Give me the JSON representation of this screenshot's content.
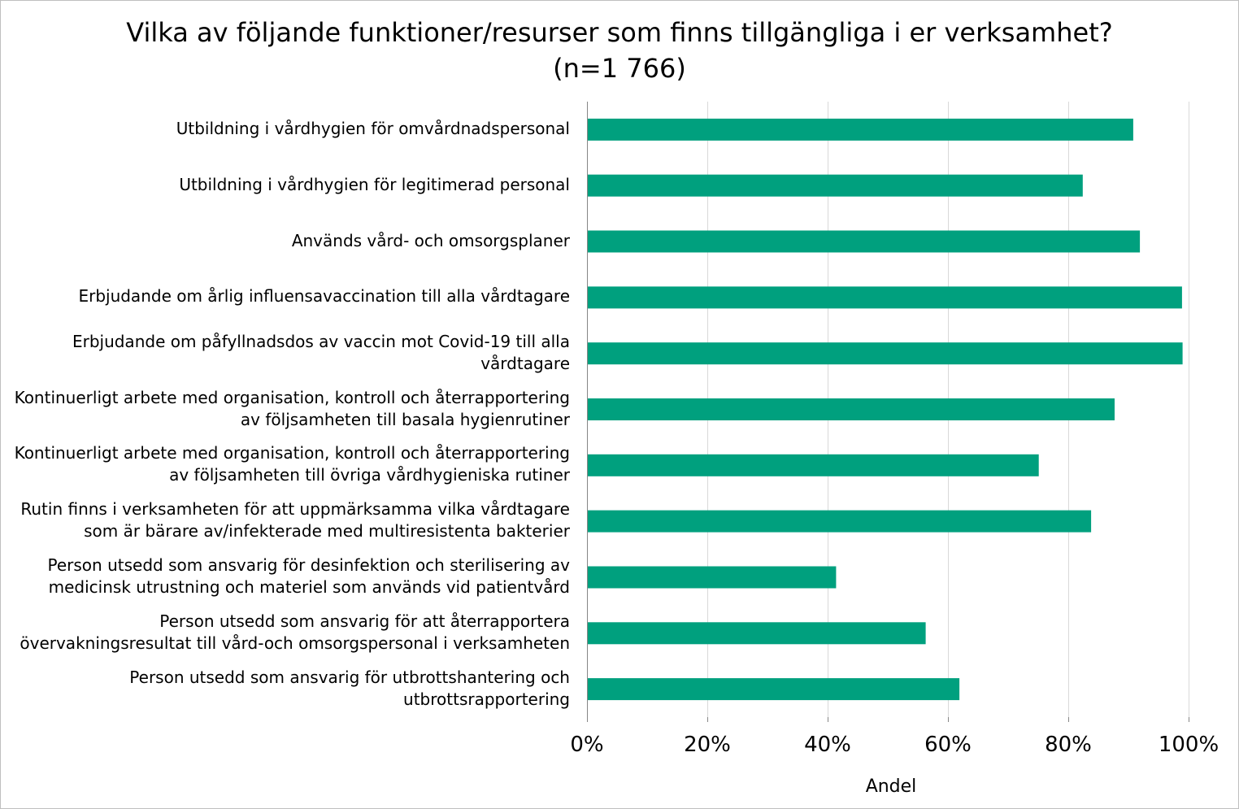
{
  "chart_data": {
    "type": "bar",
    "orientation": "horizontal",
    "title_lines": [
      "Vilka av följande funktioner/resurser som finns tillgängliga i er verksamhet?",
      "(n=1 766)"
    ],
    "xlabel": "Andel",
    "ylabel": "",
    "xlim": [
      0,
      1
    ],
    "x_ticks": [
      "0%",
      "20%",
      "40%",
      "60%",
      "80%",
      "100%"
    ],
    "x_tick_values": [
      0,
      0.2,
      0.4,
      0.6,
      0.8,
      1.0
    ],
    "grid": "vertical major gridlines",
    "legend": "none",
    "bar_color": "#00A07E",
    "grid_color": "#d9d9d9",
    "axis_color": "#868686",
    "categories": [
      [
        "Utbildning i vårdhygien för omvårdnadspersonal"
      ],
      [
        "Utbildning i vårdhygien för legitimerad personal"
      ],
      [
        "Används vård- och omsorgsplaner"
      ],
      [
        "Erbjudande om årlig influensavaccination till alla vårdtagare"
      ],
      [
        "Erbjudande om påfyllnadsdos av vaccin mot Covid-19 till alla",
        "vårdtagare"
      ],
      [
        "Kontinuerligt arbete med organisation, kontroll och återrapportering",
        "av följsamheten till basala hygienrutiner"
      ],
      [
        "Kontinuerligt arbete med organisation, kontroll och återrapportering",
        "av följsamheten till övriga vårdhygieniska rutiner"
      ],
      [
        "Rutin finns i verksamheten för att uppmärksamma vilka vårdtagare",
        "som är bärare av/infekterade med multiresistenta bakterier"
      ],
      [
        "Person utsedd som ansvarig för desinfektion och sterilisering av",
        "medicinsk utrustning och materiel som används vid patientvård"
      ],
      [
        "Person utsedd som ansvarig för att återrapportera",
        "övervakningsresultat till vård-och omsorgspersonal i verksamheten"
      ],
      [
        "Person utsedd som ansvarig för utbrottshantering och",
        "utbrottsrapportering"
      ]
    ],
    "values": [
      0.908,
      0.824,
      0.919,
      0.989,
      0.99,
      0.877,
      0.751,
      0.838,
      0.414,
      0.563,
      0.619
    ]
  }
}
